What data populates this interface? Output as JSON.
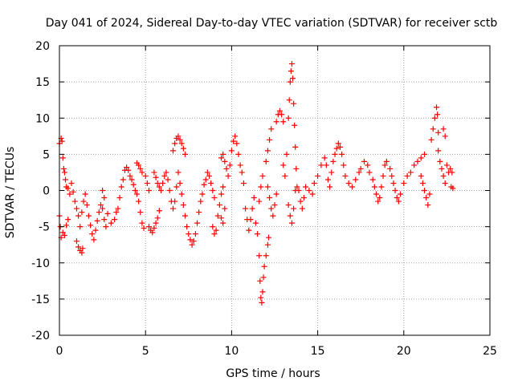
{
  "chart_data": {
    "type": "scatter",
    "title": "Day 041 of 2024, Sidereal Day-to-day VTEC variation (SDTVAR) for receiver sctb",
    "xlabel": "GPS time / hours",
    "ylabel": "SDTVAR / TECUs",
    "xlim": [
      0,
      25
    ],
    "ylim": [
      -20,
      20
    ],
    "xticks": [
      0,
      5,
      10,
      15,
      20,
      25
    ],
    "yticks": [
      -20,
      -15,
      -10,
      -5,
      0,
      5,
      10,
      15,
      20
    ],
    "grid": true,
    "marker": "+",
    "colors": {
      "series": "#ff0000",
      "grid": "#a0a0a0",
      "axis": "#000000"
    },
    "series": [
      {
        "name": "SDTVAR",
        "points": [
          [
            0.0,
            6.5
          ],
          [
            0.1,
            7.2
          ],
          [
            0.15,
            6.8
          ],
          [
            0.2,
            4.5
          ],
          [
            0.25,
            3.0
          ],
          [
            0.3,
            2.5
          ],
          [
            0.35,
            1.5
          ],
          [
            0.4,
            0.5
          ],
          [
            0.0,
            -3.5
          ],
          [
            0.05,
            -5.0
          ],
          [
            0.1,
            -6.5
          ],
          [
            0.2,
            -5.8
          ],
          [
            0.3,
            -6.2
          ],
          [
            0.4,
            -4.8
          ],
          [
            0.5,
            -4.0
          ],
          [
            0.5,
            0.3
          ],
          [
            0.6,
            -0.5
          ],
          [
            0.7,
            1.0
          ],
          [
            0.8,
            -0.2
          ],
          [
            0.9,
            -1.5
          ],
          [
            1.0,
            -2.5
          ],
          [
            1.1,
            -3.5
          ],
          [
            1.2,
            -5.0
          ],
          [
            1.0,
            -7.0
          ],
          [
            1.1,
            -7.8
          ],
          [
            1.2,
            -8.3
          ],
          [
            1.3,
            -8.6
          ],
          [
            1.35,
            -8.0
          ],
          [
            1.3,
            -3.0
          ],
          [
            1.4,
            -1.5
          ],
          [
            1.5,
            -0.5
          ],
          [
            1.6,
            -2.0
          ],
          [
            1.7,
            -3.5
          ],
          [
            1.8,
            -4.8
          ],
          [
            1.9,
            -6.0
          ],
          [
            2.0,
            -6.8
          ],
          [
            2.1,
            -5.5
          ],
          [
            2.2,
            -4.2
          ],
          [
            2.3,
            -3.0
          ],
          [
            2.4,
            -2.0
          ],
          [
            2.5,
            -2.5
          ],
          [
            2.6,
            -4.0
          ],
          [
            2.7,
            -5.0
          ],
          [
            2.5,
            0.0
          ],
          [
            2.6,
            -1.0
          ],
          [
            2.8,
            -3.2
          ],
          [
            3.0,
            -4.5
          ],
          [
            3.2,
            -4.0
          ],
          [
            3.3,
            -3.0
          ],
          [
            3.4,
            -2.5
          ],
          [
            3.5,
            -1.0
          ],
          [
            3.6,
            0.5
          ],
          [
            3.7,
            1.5
          ],
          [
            3.8,
            2.8
          ],
          [
            3.9,
            3.2
          ],
          [
            4.0,
            2.8
          ],
          [
            4.1,
            2.0
          ],
          [
            4.2,
            1.5
          ],
          [
            4.3,
            0.8
          ],
          [
            4.4,
            0.0
          ],
          [
            4.5,
            -0.5
          ],
          [
            4.6,
            -1.5
          ],
          [
            4.7,
            -3.0
          ],
          [
            4.8,
            -4.5
          ],
          [
            4.9,
            -5.2
          ],
          [
            4.5,
            3.8
          ],
          [
            4.6,
            3.5
          ],
          [
            4.7,
            3.0
          ],
          [
            4.8,
            2.5
          ],
          [
            5.0,
            2.0
          ],
          [
            5.1,
            1.0
          ],
          [
            5.2,
            0.0
          ],
          [
            5.2,
            -5.0
          ],
          [
            5.3,
            -5.5
          ],
          [
            5.4,
            -5.8
          ],
          [
            5.5,
            -5.2
          ],
          [
            5.6,
            -4.5
          ],
          [
            5.7,
            -3.8
          ],
          [
            5.8,
            -2.8
          ],
          [
            5.5,
            2.5
          ],
          [
            5.6,
            1.8
          ],
          [
            5.7,
            1.0
          ],
          [
            5.8,
            0.5
          ],
          [
            5.9,
            0.0
          ],
          [
            6.0,
            1.0
          ],
          [
            6.1,
            2.0
          ],
          [
            6.2,
            2.5
          ],
          [
            6.3,
            1.5
          ],
          [
            6.4,
            0.0
          ],
          [
            6.5,
            -1.5
          ],
          [
            6.6,
            -2.5
          ],
          [
            6.7,
            -1.5
          ],
          [
            6.8,
            0.5
          ],
          [
            6.9,
            2.5
          ],
          [
            6.6,
            5.5
          ],
          [
            6.7,
            6.5
          ],
          [
            6.8,
            7.2
          ],
          [
            6.9,
            7.5
          ],
          [
            7.0,
            7.0
          ],
          [
            7.1,
            6.5
          ],
          [
            7.2,
            5.8
          ],
          [
            7.3,
            5.0
          ],
          [
            7.0,
            1.0
          ],
          [
            7.1,
            -0.5
          ],
          [
            7.2,
            -2.0
          ],
          [
            7.3,
            -3.5
          ],
          [
            7.4,
            -5.0
          ],
          [
            7.5,
            -6.0
          ],
          [
            7.6,
            -6.8
          ],
          [
            7.7,
            -7.5
          ],
          [
            7.8,
            -7.0
          ],
          [
            7.9,
            -6.0
          ],
          [
            8.0,
            -4.5
          ],
          [
            8.1,
            -3.0
          ],
          [
            8.2,
            -1.5
          ],
          [
            8.3,
            -0.5
          ],
          [
            8.4,
            0.8
          ],
          [
            8.5,
            1.5
          ],
          [
            8.6,
            2.5
          ],
          [
            8.7,
            2.0
          ],
          [
            8.8,
            1.0
          ],
          [
            8.9,
            0.0
          ],
          [
            9.0,
            -1.0
          ],
          [
            8.9,
            -5.0
          ],
          [
            9.0,
            -6.0
          ],
          [
            9.1,
            -5.5
          ],
          [
            9.2,
            -3.5
          ],
          [
            9.3,
            -2.0
          ],
          [
            9.4,
            -0.5
          ],
          [
            9.5,
            0.5
          ],
          [
            9.4,
            4.5
          ],
          [
            9.5,
            5.0
          ],
          [
            9.6,
            4.0
          ],
          [
            9.7,
            3.0
          ],
          [
            9.8,
            2.0
          ],
          [
            9.9,
            3.5
          ],
          [
            10.0,
            5.5
          ],
          [
            10.1,
            6.8
          ],
          [
            10.2,
            7.5
          ],
          [
            10.3,
            6.5
          ],
          [
            10.4,
            5.0
          ],
          [
            10.5,
            3.5
          ],
          [
            10.6,
            2.5
          ],
          [
            10.7,
            1.0
          ],
          [
            9.4,
            -3.8
          ],
          [
            9.5,
            -4.5
          ],
          [
            9.6,
            -2.5
          ],
          [
            10.8,
            -2.5
          ],
          [
            10.9,
            -4.0
          ],
          [
            11.0,
            -5.5
          ],
          [
            11.1,
            -4.0
          ],
          [
            11.2,
            -2.5
          ],
          [
            11.3,
            -1.0
          ],
          [
            11.4,
            -4.5
          ],
          [
            11.5,
            -6.0
          ],
          [
            11.6,
            -9.0
          ],
          [
            11.65,
            -12.5
          ],
          [
            11.7,
            -14.8
          ],
          [
            11.75,
            -15.5
          ],
          [
            11.8,
            -14.0
          ],
          [
            11.85,
            -12.0
          ],
          [
            11.9,
            -10.5
          ],
          [
            12.0,
            -9.0
          ],
          [
            12.1,
            -7.5
          ],
          [
            12.15,
            -6.5
          ],
          [
            11.6,
            -1.5
          ],
          [
            11.7,
            0.5
          ],
          [
            11.8,
            2.0
          ],
          [
            12.0,
            4.0
          ],
          [
            12.1,
            5.5
          ],
          [
            12.2,
            7.0
          ],
          [
            12.3,
            8.5
          ],
          [
            12.1,
            0.5
          ],
          [
            12.2,
            -1.0
          ],
          [
            12.3,
            -2.5
          ],
          [
            12.4,
            -3.5
          ],
          [
            12.5,
            -2.0
          ],
          [
            12.6,
            -0.5
          ],
          [
            12.6,
            9.5
          ],
          [
            12.7,
            10.5
          ],
          [
            12.8,
            11.0
          ],
          [
            12.9,
            10.5
          ],
          [
            13.0,
            9.5
          ],
          [
            13.0,
            3.5
          ],
          [
            13.1,
            2.0
          ],
          [
            13.2,
            5.0
          ],
          [
            13.3,
            10.0
          ],
          [
            13.35,
            12.5
          ],
          [
            13.4,
            15.0
          ],
          [
            13.45,
            16.5
          ],
          [
            13.5,
            17.5
          ],
          [
            13.55,
            15.5
          ],
          [
            13.6,
            12.0
          ],
          [
            13.65,
            9.0
          ],
          [
            13.7,
            6.0
          ],
          [
            13.75,
            3.0
          ],
          [
            13.3,
            -2.0
          ],
          [
            13.4,
            -3.5
          ],
          [
            13.5,
            -4.5
          ],
          [
            13.6,
            -2.5
          ],
          [
            13.7,
            0.0
          ],
          [
            13.8,
            0.5
          ],
          [
            13.9,
            0.0
          ],
          [
            14.0,
            -1.5
          ],
          [
            14.1,
            -2.5
          ],
          [
            14.2,
            -1.0
          ],
          [
            14.3,
            0.5
          ],
          [
            14.5,
            0.0
          ],
          [
            14.7,
            -0.5
          ],
          [
            14.8,
            1.0
          ],
          [
            15.0,
            2.0
          ],
          [
            15.2,
            3.5
          ],
          [
            15.4,
            4.5
          ],
          [
            15.5,
            3.5
          ],
          [
            15.6,
            1.5
          ],
          [
            15.7,
            0.5
          ],
          [
            15.8,
            2.5
          ],
          [
            15.9,
            4.0
          ],
          [
            16.0,
            5.0
          ],
          [
            16.1,
            5.8
          ],
          [
            16.2,
            6.5
          ],
          [
            16.3,
            6.0
          ],
          [
            16.4,
            5.0
          ],
          [
            16.5,
            3.5
          ],
          [
            16.6,
            2.0
          ],
          [
            16.8,
            1.0
          ],
          [
            17.0,
            0.5
          ],
          [
            17.2,
            1.5
          ],
          [
            17.4,
            2.5
          ],
          [
            17.5,
            3.0
          ],
          [
            17.7,
            4.0
          ],
          [
            17.9,
            3.5
          ],
          [
            18.0,
            2.5
          ],
          [
            18.2,
            1.5
          ],
          [
            18.3,
            0.5
          ],
          [
            18.4,
            -0.5
          ],
          [
            18.5,
            -1.5
          ],
          [
            18.6,
            -1.0
          ],
          [
            18.7,
            0.5
          ],
          [
            18.8,
            2.0
          ],
          [
            18.9,
            3.5
          ],
          [
            19.0,
            4.0
          ],
          [
            19.2,
            3.0
          ],
          [
            19.3,
            2.0
          ],
          [
            19.4,
            1.0
          ],
          [
            19.5,
            0.0
          ],
          [
            19.6,
            -1.0
          ],
          [
            19.7,
            -1.5
          ],
          [
            19.8,
            -0.5
          ],
          [
            20.0,
            1.0
          ],
          [
            20.2,
            2.0
          ],
          [
            20.4,
            2.5
          ],
          [
            20.6,
            3.5
          ],
          [
            20.8,
            4.0
          ],
          [
            21.0,
            4.5
          ],
          [
            21.2,
            5.0
          ],
          [
            21.0,
            2.0
          ],
          [
            21.1,
            1.0
          ],
          [
            21.2,
            0.0
          ],
          [
            21.3,
            -1.0
          ],
          [
            21.4,
            -2.0
          ],
          [
            21.5,
            -0.5
          ],
          [
            21.6,
            7.0
          ],
          [
            21.7,
            8.5
          ],
          [
            21.8,
            10.0
          ],
          [
            21.9,
            11.5
          ],
          [
            21.95,
            10.5
          ],
          [
            22.0,
            8.0
          ],
          [
            22.0,
            5.5
          ],
          [
            22.1,
            4.0
          ],
          [
            22.2,
            3.0
          ],
          [
            22.3,
            2.0
          ],
          [
            22.4,
            1.0
          ],
          [
            22.3,
            8.5
          ],
          [
            22.4,
            7.5
          ],
          [
            22.5,
            3.5
          ],
          [
            22.6,
            2.5
          ],
          [
            22.7,
            3.0
          ],
          [
            22.8,
            2.5
          ],
          [
            22.75,
            0.5
          ],
          [
            22.85,
            0.3
          ]
        ]
      }
    ]
  }
}
